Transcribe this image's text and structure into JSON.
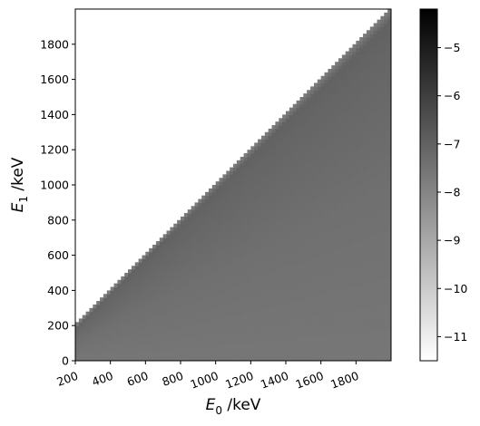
{
  "chart_data": {
    "type": "heatmap",
    "title": "",
    "xlabel": {
      "symbol": "E",
      "sub": "0",
      "unit": " /keV"
    },
    "ylabel": {
      "symbol": "E",
      "sub": "1",
      "unit": " /keV"
    },
    "xlim": [
      200,
      2000
    ],
    "ylim": [
      0,
      2000
    ],
    "x_ticks": [
      200,
      400,
      600,
      800,
      1000,
      1200,
      1400,
      1600,
      1800
    ],
    "y_ticks": [
      0,
      200,
      400,
      600,
      800,
      1000,
      1200,
      1400,
      1600,
      1800
    ],
    "colorbar": {
      "range": [
        -11.5,
        -4.2
      ],
      "ticks": [
        -11,
        -10,
        -9,
        -8,
        -7,
        -6,
        -5
      ],
      "colormap": "Greys",
      "colors": {
        "low": "#ffffff",
        "high": "#000000"
      }
    },
    "region": "E1 <= E0 (upper-left triangle above diagonal is empty / white)",
    "value_profile": {
      "E1_fraction_of_E0": [
        0.0,
        0.5,
        0.9,
        0.97,
        1.0
      ],
      "log_value": [
        -7.6,
        -7.4,
        -7.1,
        -7.0,
        -7.7
      ]
    }
  }
}
